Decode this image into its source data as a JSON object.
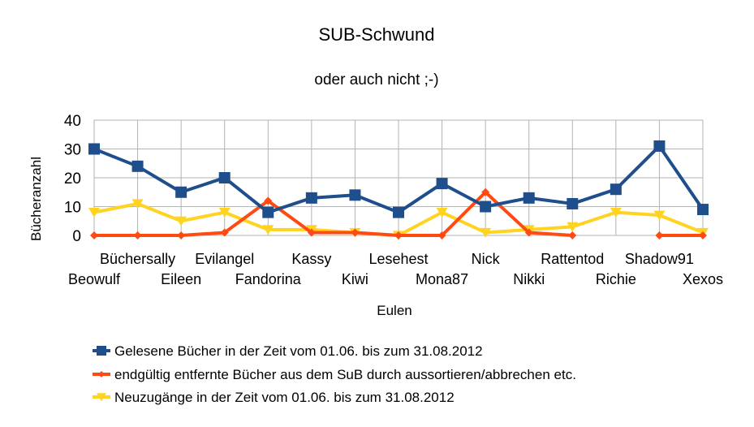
{
  "chart_data": {
    "type": "line",
    "title": "SUB-Schwund",
    "subtitle": "oder auch nicht ;-)",
    "xlabel": "Eulen",
    "ylabel": "Bücheranzahl",
    "ylim": [
      0,
      40
    ],
    "yticks": [
      0,
      10,
      20,
      30,
      40
    ],
    "grid": true,
    "legend_position": "bottom-left",
    "categories": [
      "Beowulf",
      "Büchersally",
      "Eileen",
      "Evilangel",
      "Fandorina",
      "Kassy",
      "Kiwi",
      "Lesehest",
      "Mona87",
      "Nick",
      "Nikki",
      "Rattentod",
      "Richie",
      "Shadow91",
      "Xexos"
    ],
    "series": [
      {
        "name": "Gelesene Bücher in der Zeit vom 01.06. bis zum 31.08.2012",
        "color": "#1f4e8c",
        "marker": "square",
        "values": [
          30,
          24,
          15,
          20,
          8,
          13,
          14,
          8,
          18,
          10,
          13,
          11,
          16,
          31,
          9
        ]
      },
      {
        "name": "endgültig entfernte Bücher aus dem SuB durch aussortieren/abbrechen etc.",
        "color": "#ff4a12",
        "marker": "diamond",
        "values": [
          0,
          0,
          0,
          1,
          12,
          1,
          1,
          0,
          0,
          15,
          1,
          0,
          null,
          0,
          0
        ]
      },
      {
        "name": "Neuzugänge in der Zeit vom 01.06. bis zum 31.08.2012",
        "color": "#ffd320",
        "marker": "triangle-down",
        "values": [
          8,
          11,
          5,
          8,
          2,
          2,
          1,
          0,
          8,
          1,
          2,
          3,
          8,
          7,
          1
        ]
      }
    ]
  }
}
